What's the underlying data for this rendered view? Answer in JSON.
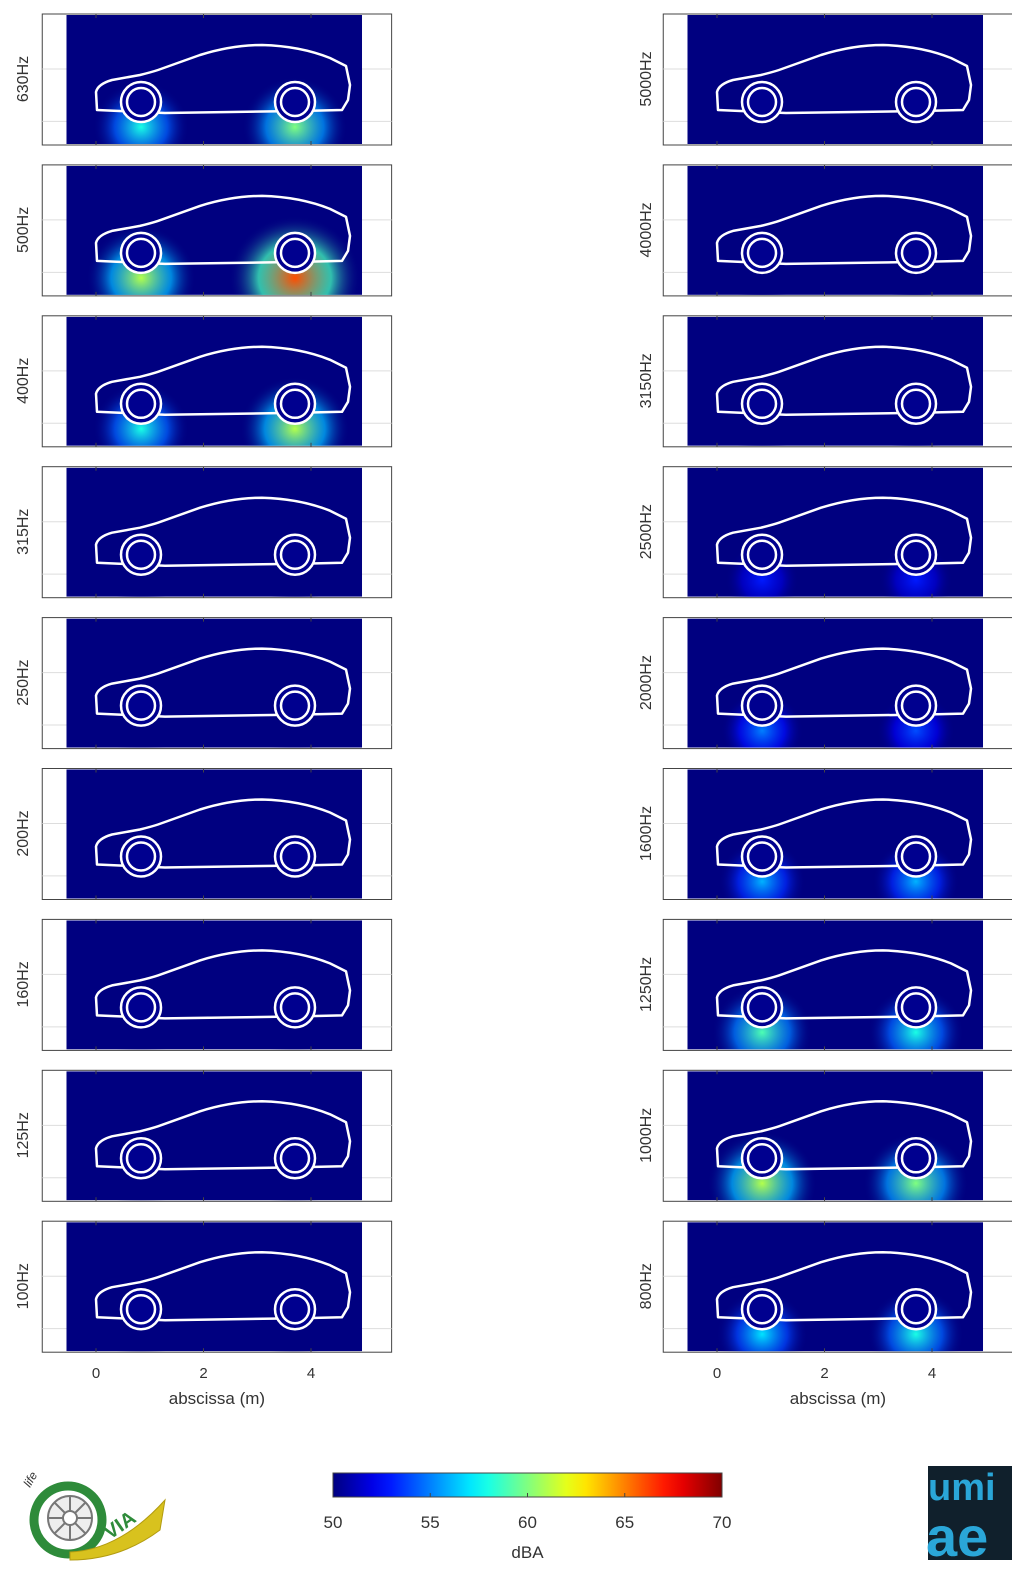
{
  "chart_data": {
    "type": "heatmap",
    "xlabel": "abscissa (m)",
    "xlim": [
      -1,
      5.5
    ],
    "xticks": [
      0,
      2,
      4
    ],
    "panels": [
      {
        "label": "630Hz",
        "values": [
          58,
          60
        ]
      },
      {
        "label": "500Hz",
        "values": [
          61,
          66
        ]
      },
      {
        "label": "400Hz",
        "values": [
          58,
          61
        ]
      },
      {
        "label": "315Hz",
        "values": [
          50,
          50
        ]
      },
      {
        "label": "250Hz",
        "values": [
          50,
          50
        ]
      },
      {
        "label": "200Hz",
        "values": [
          50,
          50
        ]
      },
      {
        "label": "160Hz",
        "values": [
          50,
          50
        ]
      },
      {
        "label": "125Hz",
        "values": [
          50,
          50
        ]
      },
      {
        "label": "100Hz",
        "values": [
          50,
          50
        ]
      },
      {
        "label": "5000Hz",
        "values": [
          50,
          50
        ]
      },
      {
        "label": "4000Hz",
        "values": [
          50,
          50
        ]
      },
      {
        "label": "3150Hz",
        "values": [
          50,
          50
        ]
      },
      {
        "label": "2500Hz",
        "values": [
          53,
          53
        ]
      },
      {
        "label": "2000Hz",
        "values": [
          55,
          54
        ]
      },
      {
        "label": "1600Hz",
        "values": [
          56,
          56
        ]
      },
      {
        "label": "1250Hz",
        "values": [
          59,
          58
        ]
      },
      {
        "label": "1000Hz",
        "values": [
          61,
          60
        ]
      },
      {
        "label": "800Hz",
        "values": [
          57,
          58
        ]
      }
    ],
    "colorbar": {
      "label": "dBA",
      "lim": [
        50,
        70
      ],
      "ticks": [
        50,
        55,
        60,
        65,
        70
      ]
    }
  },
  "logos": {
    "left_top": "life",
    "left_main": "VIA",
    "right_top": "umi",
    "right_bottom": "ae"
  }
}
